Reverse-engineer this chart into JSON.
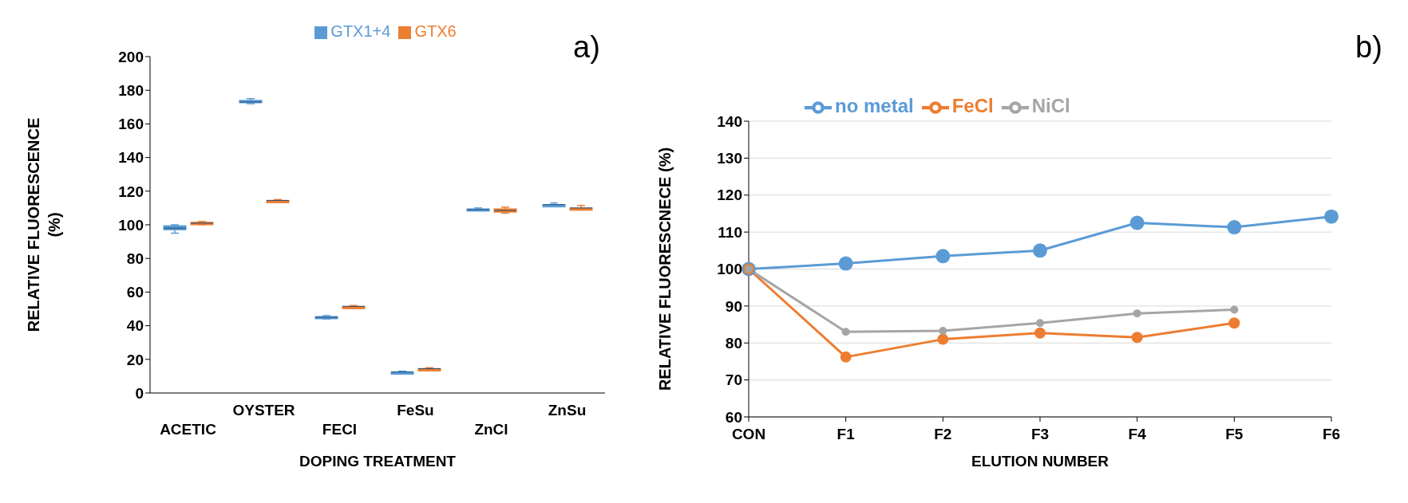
{
  "chart_data": [
    {
      "type": "box",
      "xlabel": "DOPING TREATMENT",
      "ylabel": "RELATIVE FLUORESCENCE\n(%)",
      "annotations": [
        "a)"
      ],
      "categories": [
        "ACETIC",
        "OYSTER",
        "FECI",
        "FeSu",
        "ZnCl",
        "ZnSu"
      ],
      "series": [
        {
          "name": "GTX1+4",
          "color": "#5b9bd5",
          "boxes": [
            {
              "low": 95,
              "q1": 97,
              "median": 98,
              "q3": 99.5,
              "high": 100
            },
            {
              "low": 172,
              "q1": 172.5,
              "median": 173,
              "q3": 174,
              "high": 175
            },
            {
              "low": 44,
              "q1": 44.5,
              "median": 45,
              "q3": 45.5,
              "high": 46
            },
            {
              "low": 12,
              "q1": 12,
              "median": 12.5,
              "q3": 12.5,
              "high": 13
            },
            {
              "low": 108.5,
              "q1": 109,
              "median": 109,
              "q3": 109.5,
              "high": 110
            },
            {
              "low": 111.5,
              "q1": 111.5,
              "median": 112,
              "q3": 112,
              "high": 113
            }
          ]
        },
        {
          "name": "GTX6",
          "color": "#ed7d31",
          "boxes": [
            {
              "low": 100,
              "q1": 100,
              "median": 101,
              "q3": 101.5,
              "high": 102
            },
            {
              "low": 113.5,
              "q1": 114,
              "median": 114.5,
              "q3": 114.5,
              "high": 115
            },
            {
              "low": 51,
              "q1": 51,
              "median": 51.5,
              "q3": 51.5,
              "high": 52
            },
            {
              "low": 13.5,
              "q1": 14,
              "median": 14.5,
              "q3": 14.5,
              "high": 15
            },
            {
              "low": 107,
              "q1": 107.5,
              "median": 108.5,
              "q3": 109.5,
              "high": 110.5
            },
            {
              "low": 109,
              "q1": 109.5,
              "median": 110,
              "q3": 110,
              "high": 111.5
            }
          ]
        }
      ],
      "ylim": [
        0,
        200
      ],
      "yticks": [
        0,
        20,
        40,
        60,
        80,
        100,
        120,
        140,
        160,
        180,
        200
      ],
      "grid": false,
      "legend": "top"
    },
    {
      "type": "line",
      "xlabel": "ELUTION NUMBER",
      "ylabel": "RELATIVE FLUORESCNECE (%)",
      "annotations": [
        "b)"
      ],
      "categories": [
        "CON",
        "F1",
        "F2",
        "F3",
        "F4",
        "F5",
        "F6"
      ],
      "series": [
        {
          "name": "no metal",
          "color": "#5b9bd5",
          "values": [
            100,
            101.5,
            103.5,
            105,
            112.5,
            111.3,
            114.2
          ]
        },
        {
          "name": "FeCl",
          "color": "#ed7d31",
          "values": [
            100,
            76.2,
            81,
            82.7,
            81.5,
            85.4,
            null
          ]
        },
        {
          "name": "NiCl",
          "color": "#a5a5a5",
          "values": [
            100,
            83,
            83.3,
            85.4,
            88,
            89,
            null
          ]
        }
      ],
      "ylim": [
        60,
        140
      ],
      "yticks": [
        60,
        70,
        80,
        90,
        100,
        110,
        120,
        130,
        140
      ],
      "grid": "y",
      "legend": "top left",
      "marker": "circle",
      "line_style": "solid"
    }
  ]
}
